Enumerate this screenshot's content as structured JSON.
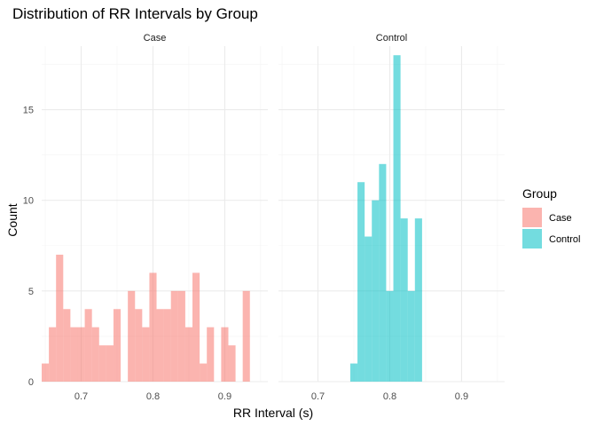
{
  "chart_data": {
    "type": "bar",
    "subtype": "faceted histogram",
    "title": "Distribution of RR Intervals by Group",
    "xlabel": "RR Interval (s)",
    "ylabel": "Count",
    "xlim": [
      0.645,
      0.96
    ],
    "ylim": [
      0,
      18.5
    ],
    "bin_width": 0.01,
    "x_ticks": [
      0.7,
      0.8,
      0.9
    ],
    "x_tick_labels": [
      "0.7",
      "0.8",
      "0.9"
    ],
    "y_ticks": [
      0,
      5,
      10,
      15
    ],
    "y_tick_labels": [
      "0",
      "5",
      "10",
      "15"
    ],
    "grid": true,
    "legend": {
      "title": "Group",
      "position": "right",
      "entries": [
        {
          "label": "Case",
          "color": "#F8766D"
        },
        {
          "label": "Control",
          "color": "#00BFC4"
        }
      ]
    },
    "facets": [
      {
        "name": "Case",
        "color": "#F8766D",
        "bins": [
          {
            "x": 0.65,
            "count": 1
          },
          {
            "x": 0.66,
            "count": 3
          },
          {
            "x": 0.67,
            "count": 7
          },
          {
            "x": 0.68,
            "count": 4
          },
          {
            "x": 0.69,
            "count": 3
          },
          {
            "x": 0.7,
            "count": 3
          },
          {
            "x": 0.71,
            "count": 4
          },
          {
            "x": 0.72,
            "count": 3
          },
          {
            "x": 0.73,
            "count": 2
          },
          {
            "x": 0.74,
            "count": 2
          },
          {
            "x": 0.75,
            "count": 4
          },
          {
            "x": 0.76,
            "count": 0
          },
          {
            "x": 0.77,
            "count": 5
          },
          {
            "x": 0.78,
            "count": 4
          },
          {
            "x": 0.79,
            "count": 3
          },
          {
            "x": 0.8,
            "count": 6
          },
          {
            "x": 0.81,
            "count": 4
          },
          {
            "x": 0.82,
            "count": 4
          },
          {
            "x": 0.83,
            "count": 5
          },
          {
            "x": 0.84,
            "count": 5
          },
          {
            "x": 0.85,
            "count": 3
          },
          {
            "x": 0.86,
            "count": 6
          },
          {
            "x": 0.87,
            "count": 1
          },
          {
            "x": 0.88,
            "count": 3
          },
          {
            "x": 0.89,
            "count": 0
          },
          {
            "x": 0.9,
            "count": 3
          },
          {
            "x": 0.91,
            "count": 2
          },
          {
            "x": 0.92,
            "count": 0
          },
          {
            "x": 0.93,
            "count": 5
          }
        ]
      },
      {
        "name": "Control",
        "color": "#00BFC4",
        "bins": [
          {
            "x": 0.75,
            "count": 1
          },
          {
            "x": 0.76,
            "count": 11
          },
          {
            "x": 0.77,
            "count": 8
          },
          {
            "x": 0.78,
            "count": 10
          },
          {
            "x": 0.79,
            "count": 12
          },
          {
            "x": 0.8,
            "count": 5
          },
          {
            "x": 0.81,
            "count": 18
          },
          {
            "x": 0.82,
            "count": 9
          },
          {
            "x": 0.83,
            "count": 5
          },
          {
            "x": 0.84,
            "count": 9
          }
        ]
      }
    ]
  }
}
